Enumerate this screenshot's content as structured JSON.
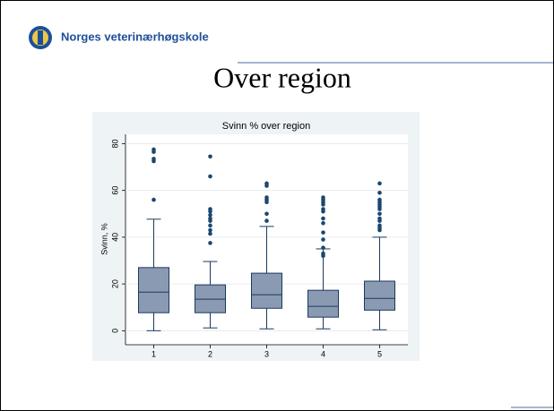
{
  "header": {
    "institution": "Norges veterinærhøgskole",
    "slide_title": "Over region"
  },
  "chart_data": {
    "type": "box",
    "title": "Svinn % over region",
    "y_label": "Svinn, %",
    "categories": [
      "1",
      "2",
      "3",
      "4",
      "5"
    ],
    "boxes": [
      {
        "min": 0,
        "q1": 7.7,
        "median": 16.5,
        "q3": 27,
        "max": 47.7,
        "outliers": [
          56,
          72.5,
          73.5,
          76.5,
          77.5
        ]
      },
      {
        "min": 1.2,
        "q1": 7.7,
        "median": 13.5,
        "q3": 19.6,
        "max": 29.6,
        "outliers": [
          37.5,
          41.5,
          43,
          45,
          47,
          48,
          49.5,
          51,
          52,
          66,
          74.5
        ]
      },
      {
        "min": 0.8,
        "q1": 9.6,
        "median": 15.4,
        "q3": 24.6,
        "max": 44.6,
        "outliers": [
          47,
          50,
          55,
          56,
          57,
          62,
          63
        ]
      },
      {
        "min": 0.8,
        "q1": 5.8,
        "median": 10.4,
        "q3": 17.3,
        "max": 35,
        "outliers": [
          32,
          33,
          35.5,
          39,
          42,
          46,
          48,
          51,
          52,
          54,
          55,
          56,
          57
        ]
      },
      {
        "min": 0.4,
        "q1": 8.8,
        "median": 13.8,
        "q3": 21.2,
        "max": 40,
        "outliers": [
          43,
          44,
          45,
          47,
          48,
          50,
          52,
          53,
          54,
          55,
          56,
          59,
          63
        ]
      }
    ],
    "box_color": "#8a9ab3",
    "line_color": "#1a3a5c",
    "outlier_color": "#1a476f",
    "ylim": [
      -6,
      84
    ],
    "yticks": [
      0,
      20,
      40,
      60,
      80
    ],
    "grid": true
  }
}
